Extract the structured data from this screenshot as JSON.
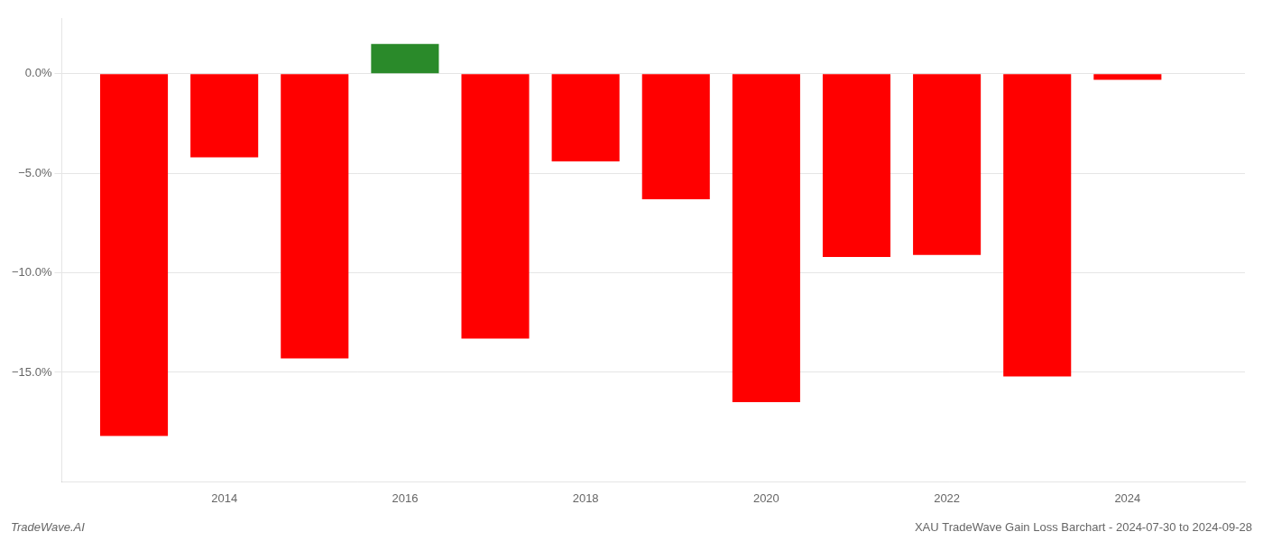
{
  "chart_data": {
    "type": "bar",
    "x": [
      2013,
      2014,
      2015,
      2016,
      2017,
      2018,
      2019,
      2020,
      2021,
      2022,
      2023,
      2024
    ],
    "values": [
      -18.2,
      -4.2,
      -14.3,
      1.5,
      -13.3,
      -4.4,
      -6.3,
      -16.5,
      -9.2,
      -9.1,
      -15.2,
      -0.3
    ],
    "colors": [
      "#ff0000",
      "#ff0000",
      "#ff0000",
      "#2a8a2a",
      "#ff0000",
      "#ff0000",
      "#ff0000",
      "#ff0000",
      "#ff0000",
      "#ff0000",
      "#ff0000",
      "#ff0000"
    ],
    "xlim": [
      2012.2,
      2025.3
    ],
    "xticks": [
      2014,
      2016,
      2018,
      2020,
      2022,
      2024
    ],
    "ylim": [
      -20.5,
      2.8
    ],
    "yticks": [
      {
        "value": 0.0,
        "label": "0.0%"
      },
      {
        "value": -5.0,
        "label": "−5.0%"
      },
      {
        "value": -10.0,
        "label": "−10.0%"
      },
      {
        "value": -15.0,
        "label": "−15.0%"
      }
    ],
    "grid": true,
    "annotations": [
      "TradeWave.AI",
      "XAU TradeWave Gain Loss Barchart - 2024-07-30 to 2024-09-28"
    ]
  }
}
